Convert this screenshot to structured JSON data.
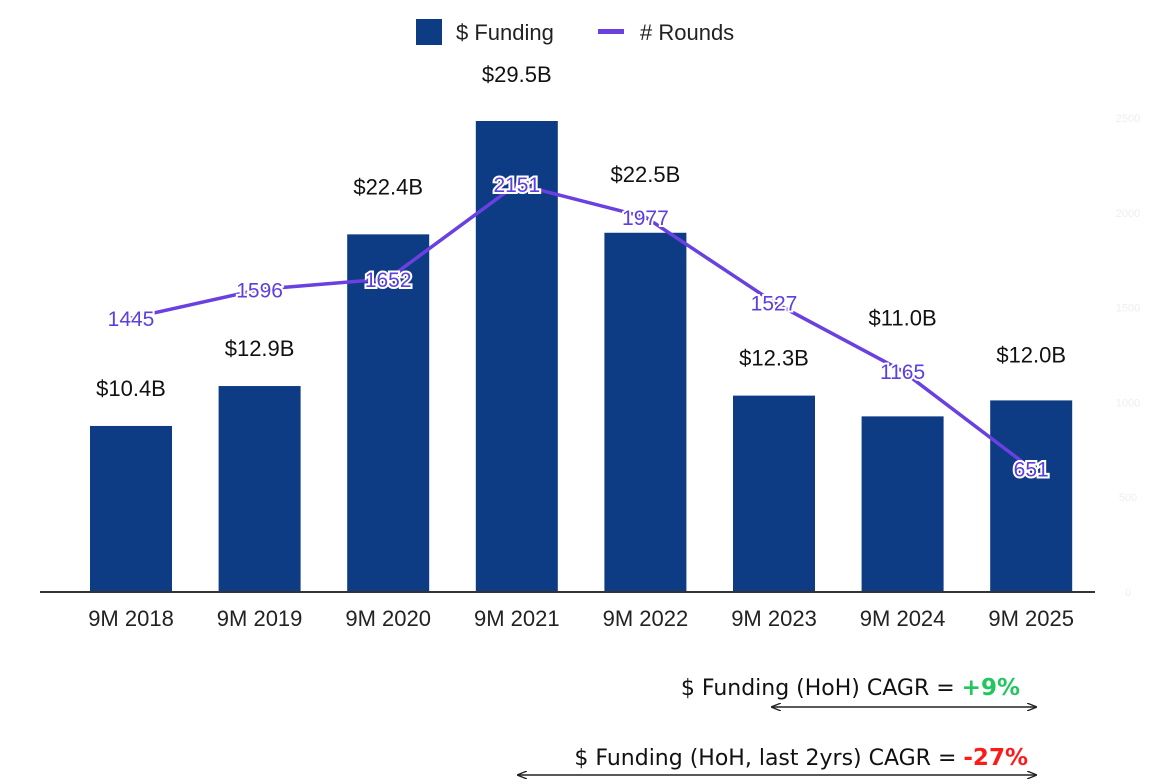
{
  "chart_data": {
    "type": "bar+line",
    "categories": [
      "9M 2018",
      "9M 2019",
      "9M 2020",
      "9M 2021",
      "9M 2022",
      "9M 2023",
      "9M 2024",
      "9M 2025"
    ],
    "series": [
      {
        "name": "$ Funding",
        "type": "bar",
        "axis": "left",
        "values": [
          10.4,
          12.9,
          22.4,
          29.5,
          22.5,
          12.3,
          11.0,
          12.0
        ],
        "labels": [
          "$10.4B",
          "$12.9B",
          "$22.4B",
          "$29.5B",
          "$22.5B",
          "$12.3B",
          "$11.0B",
          "$12.0B"
        ],
        "color": "#0d3b84"
      },
      {
        "name": "# Rounds",
        "type": "line",
        "axis": "right",
        "values": [
          1445,
          1596,
          1652,
          2151,
          1977,
          1527,
          1165,
          651
        ],
        "labels": [
          "1445",
          "1596",
          "1652",
          "2151",
          "1977",
          "1527",
          "1165",
          "651"
        ],
        "color": "#6a40e0"
      }
    ],
    "right_axis": {
      "ticks": [
        "0",
        "500",
        "1000",
        "1500",
        "2000",
        "2500"
      ],
      "range": [
        0,
        2500
      ]
    },
    "left_axis": {
      "range": [
        0,
        30
      ]
    },
    "legend": "top-center",
    "grid": false
  },
  "annotations": [
    {
      "text": "$ Funding (HoH) CAGR = ",
      "value": "+9%",
      "color": "#22c55e"
    },
    {
      "text": "$ Funding (HoH, last 2yrs) CAGR = ",
      "value": "-27%",
      "color": "#ff1a1a"
    }
  ]
}
